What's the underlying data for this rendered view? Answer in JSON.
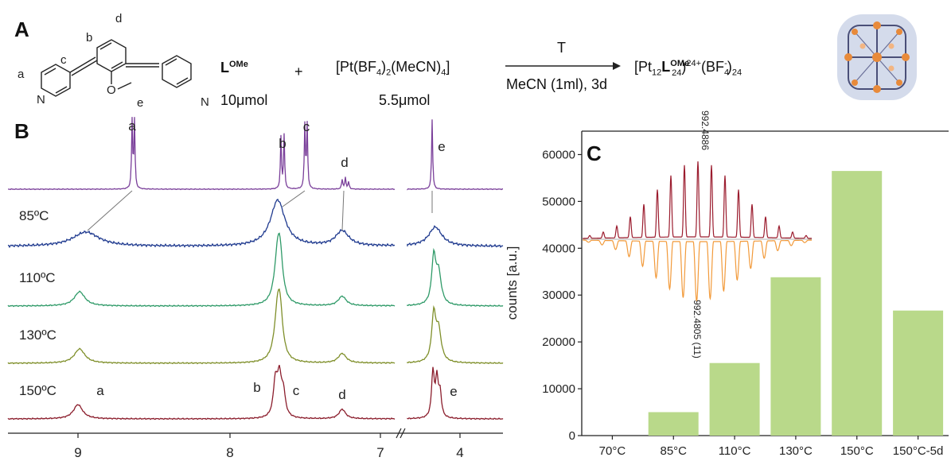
{
  "panel_a": {
    "label": "A",
    "ligand_name": "L",
    "ligand_sup": "OMe",
    "ligand_amount": "10μmol",
    "plus": "+",
    "reagent": "[Pt(BF",
    "reagent_sub1": "4",
    "reagent_mid": ")",
    "reagent_sub2": "2",
    "reagent_mid2": "(MeCN)",
    "reagent_sub3": "4",
    "reagent_end": "]",
    "reagent_amount": "5.5μmol",
    "arrow_top": "T",
    "arrow_bottom": "MeCN (1ml), 3d",
    "product_pre": "[Pt",
    "product_sub1": "12",
    "product_L": "L",
    "product_sup": "OMe",
    "product_sub2": "24",
    "product_charge": "24+",
    "product_mid": "(BF",
    "product_sub3": "4",
    "product_sup2": "-",
    "product_end": ")",
    "product_sub4": "24",
    "structure_labels": [
      "a",
      "b",
      "c",
      "d",
      "e"
    ],
    "atom_N": "N",
    "atom_O": "O"
  },
  "panel_b": {
    "label": "B",
    "peak_labels_top": [
      "a",
      "b",
      "c",
      "d",
      "e"
    ],
    "temperatures": [
      "85ºC",
      "110ºC",
      "130ºC",
      "150ºC"
    ],
    "peak_labels_bottom": [
      "a",
      "b",
      "c",
      "d",
      "e"
    ],
    "x_ticks": [
      "9",
      "8",
      "7",
      "4"
    ],
    "trace_colors": [
      "#7a3f9a",
      "#1f3a8f",
      "#2f9a68",
      "#7f8f2a",
      "#8b1d2c"
    ]
  },
  "chart_data": {
    "type": "bar",
    "title": "",
    "panel_label": "C",
    "categories": [
      "70°C",
      "85°C",
      "110°C",
      "130°C",
      "150°C",
      "150°C-5d"
    ],
    "values": [
      0,
      5000,
      15500,
      33800,
      56500,
      26700
    ],
    "xlabel": "",
    "ylabel": "counts [a.u.]",
    "ylim": [
      0,
      65000
    ],
    "yticks": [
      0,
      10000,
      20000,
      30000,
      40000,
      50000,
      60000
    ],
    "bar_color": "#b9d98a",
    "grid": false,
    "inset": {
      "type": "mass-spectrum-isotope-pattern",
      "top_label": "992.4886",
      "bottom_label": "992.4805 (11)",
      "top_color": "#9b1c2e",
      "bottom_color": "#f29a3a"
    }
  }
}
